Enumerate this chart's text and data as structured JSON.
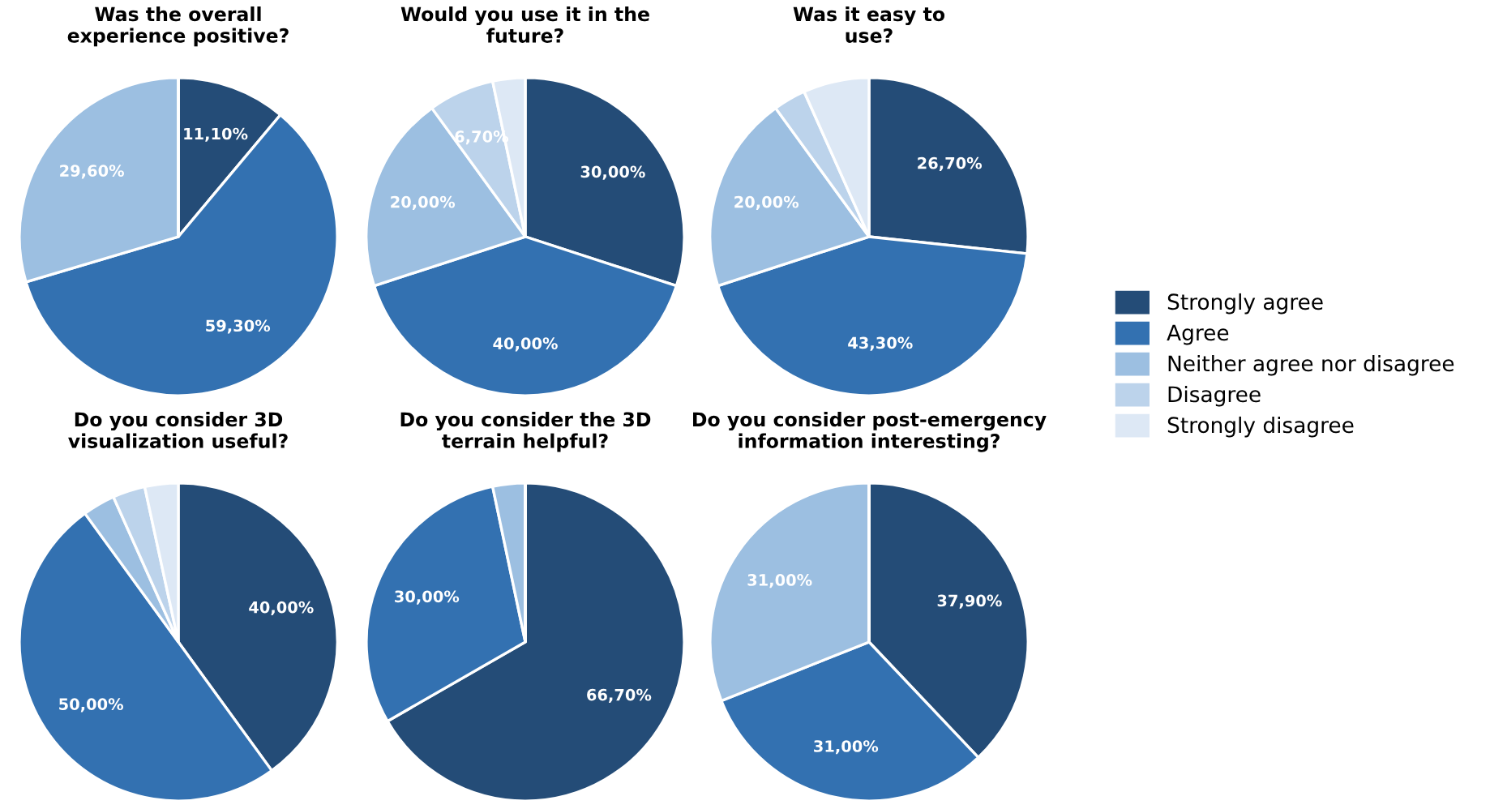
{
  "chart_data": [
    {
      "type": "pie",
      "title": "Was the overall\nexperience positive?",
      "categories": [
        "Strongly agree",
        "Agree",
        "Neither agree nor disagree",
        "Disagree",
        "Strongly disagree"
      ],
      "values": [
        11.1,
        59.3,
        29.6,
        0,
        0
      ],
      "value_labels": [
        "11,10%",
        "59,30%",
        "29,60%",
        null,
        null
      ],
      "colors": [
        "#244c77",
        "#3371b1",
        "#9cbfe1",
        "#bcd3eb",
        "#dde8f5"
      ],
      "legend": "right"
    },
    {
      "type": "pie",
      "title": "Would you use it in the\nfuture?",
      "categories": [
        null,
        null,
        null,
        null,
        null
      ],
      "values": [
        30,
        40,
        20,
        6.7,
        3.3
      ],
      "value_labels": [
        "30,00%",
        "40,00%",
        "20,00%",
        "6,70%",
        null
      ],
      "colors": [
        "#244c77",
        "#3371b1",
        "#9cbfe1",
        "#bcd3eb",
        "#dde8f5"
      ]
    },
    {
      "type": "pie",
      "title": "Was it easy to\nuse?",
      "categories": [
        null,
        null,
        null,
        null,
        null
      ],
      "values": [
        26.7,
        43.3,
        20,
        3.3,
        6.7
      ],
      "value_labels": [
        "26,70%",
        "43,30%",
        "20,00%",
        null,
        null
      ],
      "colors": [
        "#244c77",
        "#3371b1",
        "#9cbfe1",
        "#bcd3eb",
        "#dde8f5"
      ]
    },
    {
      "type": "pie",
      "title": "Do you consider 3D\nvisualization useful?",
      "categories": [
        null,
        null,
        null,
        null,
        null
      ],
      "values": [
        40,
        50,
        3.3,
        3.3,
        3.4
      ],
      "value_labels": [
        "40,00%",
        "50,00%",
        null,
        null,
        null
      ],
      "colors": [
        "#244c77",
        "#3371b1",
        "#9cbfe1",
        "#bcd3eb",
        "#dde8f5"
      ]
    },
    {
      "type": "pie",
      "title": "Do you consider the 3D\nterrain helpful?",
      "categories": [
        null,
        null,
        null,
        null,
        null
      ],
      "values": [
        66.7,
        30,
        3.3,
        0,
        0
      ],
      "value_labels": [
        "66,70%",
        "30,00%",
        null,
        null,
        null
      ],
      "colors": [
        "#244c77",
        "#3371b1",
        "#9cbfe1",
        "#bcd3eb",
        "#dde8f5"
      ]
    },
    {
      "type": "pie",
      "title": "Do you consider post-emergency\ninformation interesting?",
      "categories": [
        null,
        null,
        null,
        null,
        null
      ],
      "values": [
        37.9,
        31,
        31,
        0,
        0
      ],
      "value_labels": [
        "37,90%",
        "31,00%",
        "31,00%",
        null,
        null
      ],
      "colors": [
        "#244c77",
        "#3371b1",
        "#9cbfe1",
        "#bcd3eb",
        "#dde8f5"
      ]
    }
  ]
}
